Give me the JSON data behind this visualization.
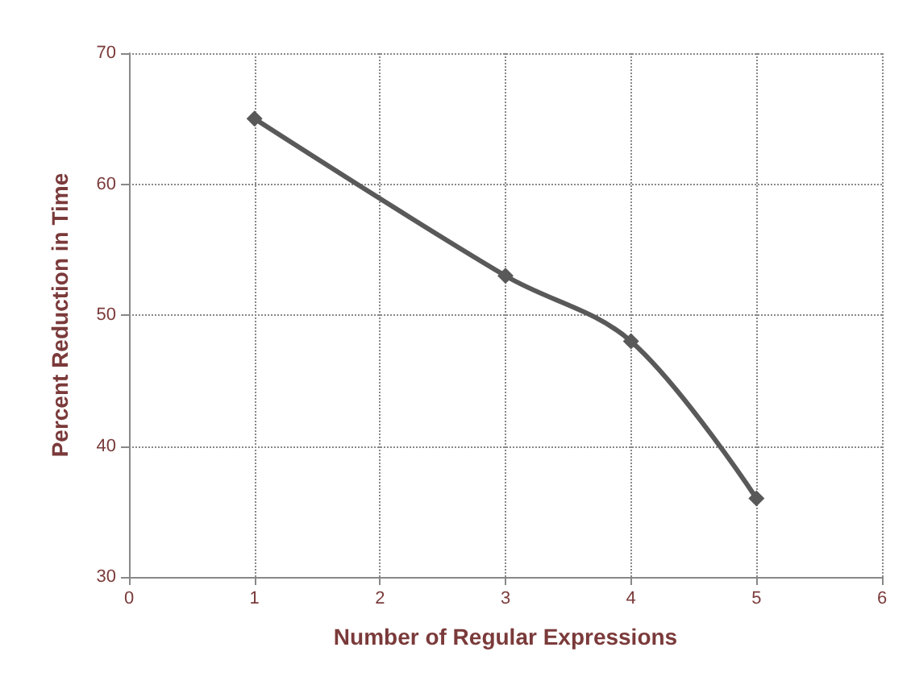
{
  "chart_data": {
    "type": "line",
    "xlabel": "Number of Regular Expressions",
    "ylabel": "Percent Reduction in Time",
    "x": [
      1,
      3,
      4,
      5
    ],
    "series": [
      {
        "color": "#595959",
        "values": [
          65,
          53,
          48,
          36
        ]
      }
    ],
    "xlim": [
      0,
      6
    ],
    "xticks": [
      0,
      1,
      2,
      3,
      4,
      5,
      6
    ],
    "ylim": [
      30,
      70
    ],
    "yticks": [
      30,
      40,
      50,
      60,
      70
    ],
    "grid": true,
    "marker": "diamond",
    "line_style": "solid"
  }
}
